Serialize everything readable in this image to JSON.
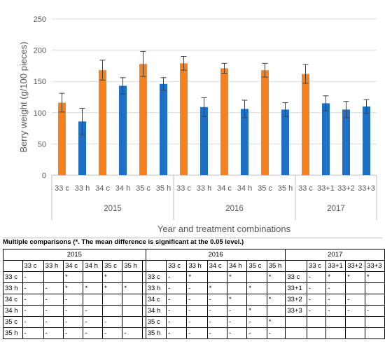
{
  "chart_data": {
    "type": "bar",
    "xlabel": "Year and treatment combinations",
    "ylabel": "Berry weight (g/100 pieces)",
    "ylim": [
      0,
      250
    ],
    "yticks": [
      0,
      50,
      100,
      150,
      200,
      250
    ],
    "grid": true,
    "colors": {
      "orange": "#f58220",
      "blue": "#1f6fc5",
      "error": "#404040",
      "grid": "#d9d9d9"
    },
    "groups": [
      {
        "year": "2015",
        "bars": [
          {
            "label": "33 c",
            "value": 116,
            "error": 15,
            "color": "orange"
          },
          {
            "label": "33 h",
            "value": 86,
            "error": 21,
            "color": "blue"
          },
          {
            "label": "34 c",
            "value": 168,
            "error": 16,
            "color": "orange"
          },
          {
            "label": "34 h",
            "value": 143,
            "error": 13,
            "color": "blue"
          },
          {
            "label": "35 c",
            "value": 178,
            "error": 20,
            "color": "orange"
          },
          {
            "label": "35 h",
            "value": 146,
            "error": 10,
            "color": "blue"
          }
        ]
      },
      {
        "year": "2016",
        "bars": [
          {
            "label": "33 c",
            "value": 179,
            "error": 11,
            "color": "orange"
          },
          {
            "label": "33 h",
            "value": 109,
            "error": 15,
            "color": "blue"
          },
          {
            "label": "34 c",
            "value": 171,
            "error": 8,
            "color": "orange"
          },
          {
            "label": "34 h",
            "value": 106,
            "error": 14,
            "color": "blue"
          },
          {
            "label": "35 c",
            "value": 168,
            "error": 11,
            "color": "orange"
          },
          {
            "label": "35 h",
            "value": 105,
            "error": 11,
            "color": "blue"
          }
        ]
      },
      {
        "year": "2017",
        "bars": [
          {
            "label": "33 c",
            "value": 162,
            "error": 15,
            "color": "orange"
          },
          {
            "label": "33+1",
            "value": 115,
            "error": 12,
            "color": "blue"
          },
          {
            "label": "33+2",
            "value": 105,
            "error": 13,
            "color": "blue"
          },
          {
            "label": "33+3",
            "value": 110,
            "error": 11,
            "color": "blue"
          }
        ]
      }
    ]
  },
  "comparisons": {
    "title": "Multiple comparisons (*. The mean difference is significant at the 0.05 level.)",
    "years": [
      "2015",
      "2016",
      "2017"
    ],
    "headers_2015_2016": [
      "33 c",
      "33 h",
      "34 c",
      "34 h",
      "35 c",
      "35 h"
    ],
    "headers_2017": [
      "33 c",
      "33+1",
      "33+2",
      "33+3"
    ],
    "rows_2015": [
      [
        "33 c",
        "-",
        "",
        "*",
        "",
        "*",
        ""
      ],
      [
        "33 h",
        "-",
        "-",
        "*",
        "*",
        "*",
        "*"
      ],
      [
        "34 c",
        "-",
        "-",
        "-",
        "",
        "",
        ""
      ],
      [
        "34 h",
        "-",
        "-",
        "-",
        "-",
        "",
        ""
      ],
      [
        "35 c",
        "-",
        "-",
        "-",
        "-",
        "-",
        ""
      ],
      [
        "35 h",
        "-",
        "-",
        "-",
        "-",
        "-",
        "-"
      ]
    ],
    "rows_2016": [
      [
        "33 c",
        "-",
        "*",
        "",
        "*",
        "",
        "*"
      ],
      [
        "33 h",
        "-",
        "-",
        "*",
        "",
        "*",
        ""
      ],
      [
        "34 c",
        "-",
        "-",
        "-",
        "*",
        "",
        "*"
      ],
      [
        "34 h",
        "-",
        "-",
        "-",
        "-",
        "*",
        ""
      ],
      [
        "35 c",
        "-",
        "-",
        "-",
        "-",
        "-",
        "*"
      ],
      [
        "35 h",
        "-",
        "-",
        "-",
        "-",
        "-",
        "-"
      ]
    ],
    "rows_2017": [
      [
        "33 c",
        "-",
        "*",
        "*",
        "*"
      ],
      [
        "33+1",
        "-",
        "-",
        "",
        ""
      ],
      [
        "33+2",
        "-",
        "-",
        "-",
        ""
      ],
      [
        "33+3",
        "-",
        "-",
        "-",
        "-"
      ],
      [
        "",
        "",
        "",
        "",
        ""
      ],
      [
        "",
        "",
        "",
        "",
        ""
      ]
    ]
  }
}
